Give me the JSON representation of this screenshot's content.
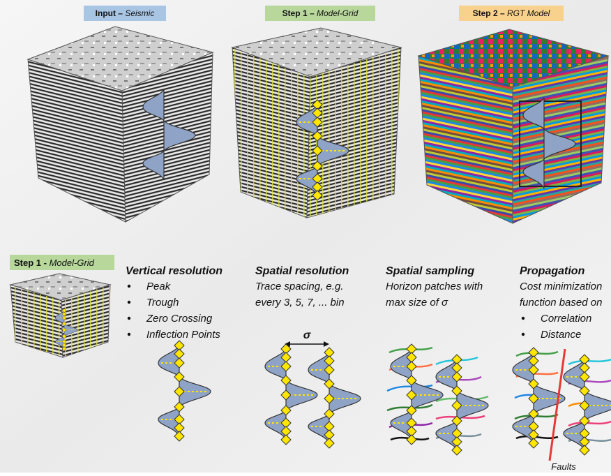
{
  "top_labels": [
    {
      "prefix": "Input –",
      "emphasis": "Seismic"
    },
    {
      "prefix": "Step 1 –",
      "emphasis": "Model-Grid"
    },
    {
      "prefix": "Step 2 –",
      "emphasis": "RGT Model"
    }
  ],
  "bottom_label": {
    "prefix": "Step 1 -",
    "emphasis": "Model-Grid"
  },
  "columns": [
    {
      "heading": "Vertical resolution",
      "bullets": [
        "Peak",
        "Trough",
        "Zero Crossing",
        "Inflection Points"
      ]
    },
    {
      "heading": "Spatial resolution",
      "lines": [
        "Trace spacing, e.g.",
        "every 3, 5, 7, ... bin"
      ]
    },
    {
      "heading": "Spatial sampling",
      "lines": [
        "Horizon patches with",
        "max size of σ"
      ]
    },
    {
      "heading": "Propagation",
      "lines": [
        "Cost minimization",
        "function based on"
      ],
      "bullets": [
        "Correlation",
        "Distance"
      ]
    }
  ],
  "sigma_label": "σ",
  "faults_label": "Faults"
}
